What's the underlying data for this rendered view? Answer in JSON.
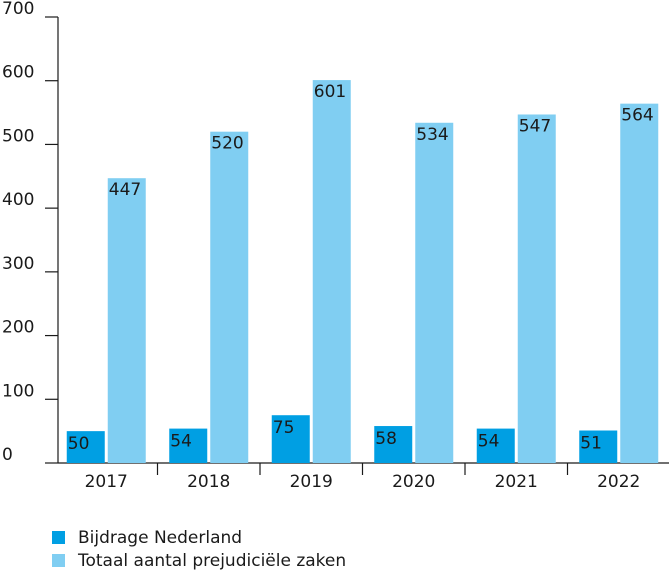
{
  "chart_data": {
    "type": "bar",
    "categories": [
      "2017",
      "2018",
      "2019",
      "2020",
      "2021",
      "2022"
    ],
    "series": [
      {
        "name": "Bijdrage Nederland",
        "color": "#009fe3",
        "values": [
          50,
          54,
          75,
          58,
          54,
          51
        ]
      },
      {
        "name": "Totaal aantal prejudiciële zaken",
        "color": "#80cef2",
        "values": [
          447,
          520,
          601,
          534,
          547,
          564
        ]
      }
    ],
    "ylim": [
      0,
      700
    ],
    "yticks": [
      0,
      100,
      200,
      300,
      400,
      500,
      600,
      700
    ],
    "grid": false,
    "legend": "bottom"
  }
}
